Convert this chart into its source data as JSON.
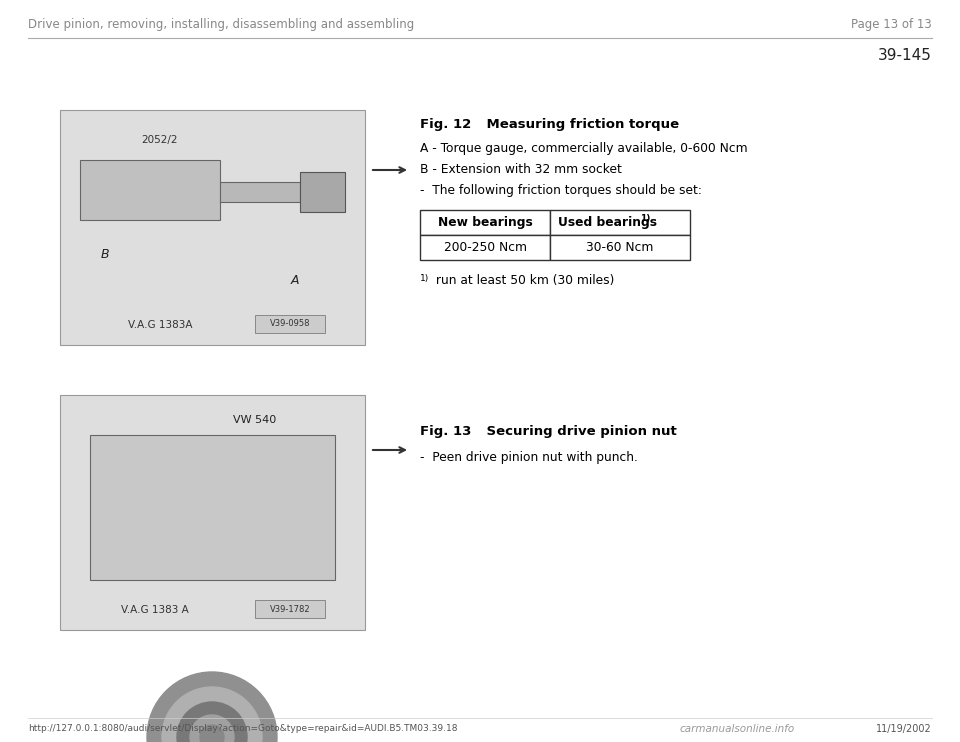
{
  "page_bg": "#ffffff",
  "header_title": "Drive pinion, removing, installing, disassembling and assembling",
  "header_page": "Page 13 of 13",
  "section_number": "39-145",
  "fig12_title_bold": "Fig. 12",
  "fig12_title_rest": "    Measuring friction torque",
  "fig12_lines": [
    "A - Torque gauge, commercially available, 0-600 Ncm",
    "B - Extension with 32 mm socket",
    "-  The following friction torques should be set:"
  ],
  "table_col1_header": "New bearings",
  "table_col2_header": "Used bearings ",
  "table_col2_sup": "1)",
  "table_row": [
    "200-250 Ncm",
    "30-60 Ncm"
  ],
  "footnote_sup": "1)",
  "footnote_text": " run at least 50 km (30 miles)",
  "fig13_title_bold": "Fig. 13",
  "fig13_title_rest": "    Securing drive pinion nut",
  "fig13_line": "-  Peen drive pinion nut with punch.",
  "footer_url": "http://127.0.0.1:8080/audi/servlet/Display?action=Goto&type=repair&id=AUDI.B5.TM03.39.18",
  "footer_date": "11/19/2002",
  "footer_logo": "carmanualsonline.info",
  "text_color": "#000000",
  "gray_text": "#666666",
  "img_face": "#d8d8d4",
  "img_edge": "#777777"
}
